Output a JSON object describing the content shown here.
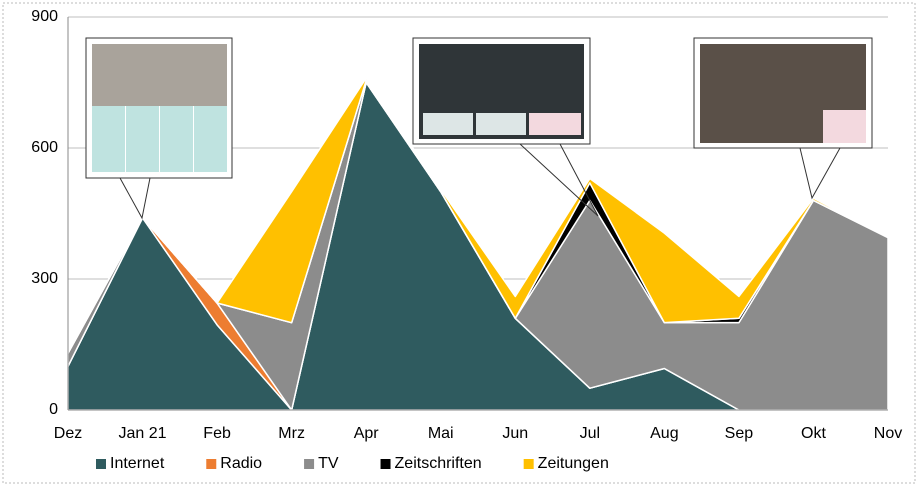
{
  "chart_data": {
    "type": "stacked-area",
    "categories": [
      "Dez",
      "Jan 21",
      "Feb",
      "Mrz",
      "Apr",
      "Mai",
      "Jun",
      "Jul",
      "Aug",
      "Sep",
      "Okt",
      "Nov"
    ],
    "series": [
      {
        "name": "Internet",
        "color": "#2f5b5f",
        "values": [
          100,
          440,
          195,
          0,
          750,
          500,
          210,
          50,
          95,
          0,
          0,
          0
        ]
      },
      {
        "name": "Radio",
        "color": "#ed7d31",
        "values": [
          0,
          0,
          50,
          0,
          0,
          0,
          0,
          0,
          0,
          0,
          0,
          0
        ]
      },
      {
        "name": "TV",
        "color": "#8c8c8c",
        "values": [
          30,
          0,
          0,
          200,
          5,
          0,
          0,
          430,
          105,
          200,
          480,
          395
        ]
      },
      {
        "name": "Zeitschriften",
        "color": "#000000",
        "values": [
          0,
          0,
          0,
          0,
          0,
          0,
          0,
          40,
          0,
          10,
          0,
          0
        ]
      },
      {
        "name": "Zeitungen",
        "color": "#ffc000",
        "values": [
          0,
          0,
          0,
          300,
          5,
          5,
          50,
          10,
          205,
          50,
          5,
          0
        ]
      }
    ],
    "ylim": [
      0,
      900
    ],
    "yticks": [
      0,
      300,
      600,
      900
    ],
    "grid": true,
    "legend": "bottom"
  }
}
